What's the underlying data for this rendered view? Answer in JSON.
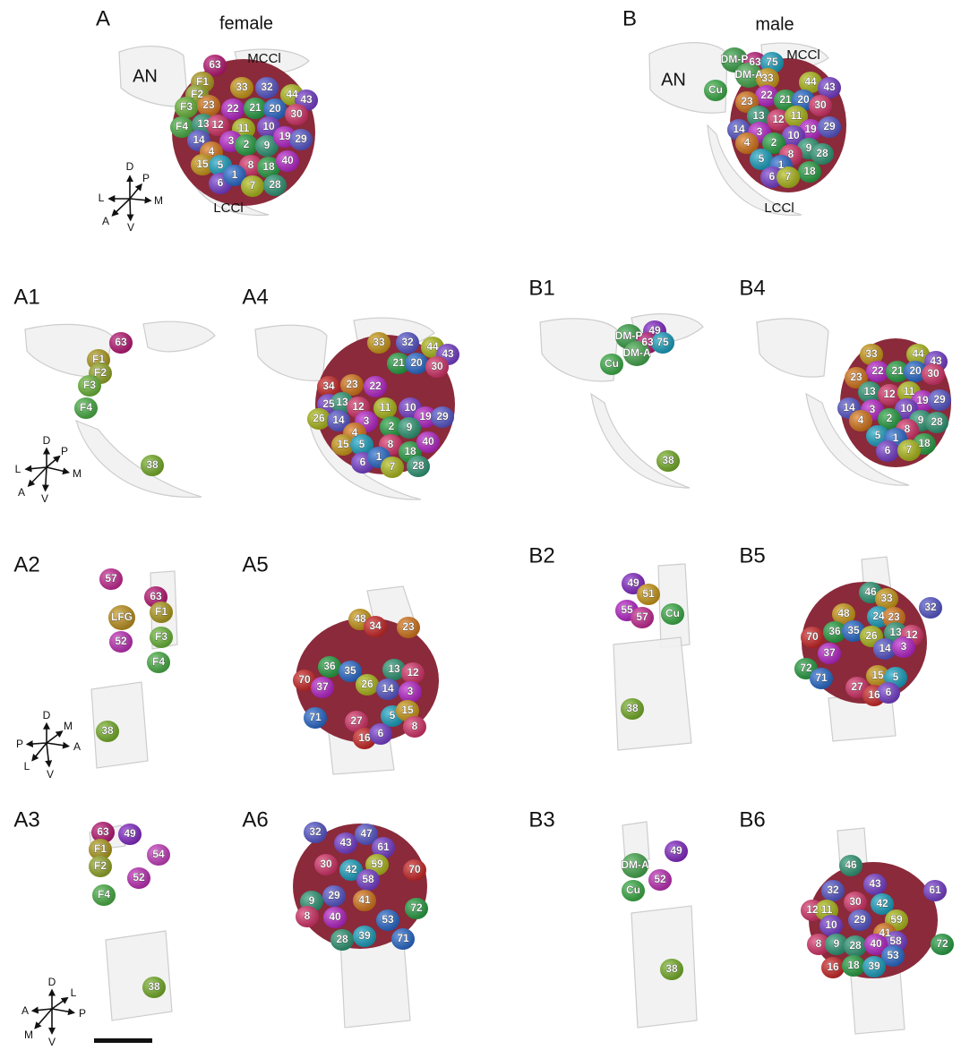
{
  "panels": [
    {
      "label": "A",
      "title": "female",
      "structures": [
        "AN",
        "MCCl",
        "LCCl"
      ],
      "glomeruli": [
        "63",
        "F1",
        "F2",
        "33",
        "32",
        "44",
        "43",
        "F3",
        "23",
        "22",
        "21",
        "20",
        "30",
        "F4",
        "13",
        "12",
        "11",
        "10",
        "14",
        "3",
        "2",
        "9",
        "19",
        "29",
        "4",
        "15",
        "5",
        "8",
        "18",
        "40",
        "6",
        "1",
        "7",
        "28"
      ]
    },
    {
      "label": "B",
      "title": "male",
      "structures": [
        "AN",
        "MCCl",
        "LCCl"
      ],
      "glomeruli": [
        "Cu",
        "DM-P",
        "63",
        "75",
        "DM-A",
        "33",
        "44",
        "43",
        "22",
        "21",
        "20",
        "30",
        "23",
        "13",
        "12",
        "11",
        "19",
        "29",
        "14",
        "3",
        "10",
        "4",
        "2",
        "9",
        "28",
        "8",
        "5",
        "1",
        "18",
        "6",
        "7"
      ]
    },
    {
      "label": "A1",
      "glomeruli": [
        "63",
        "F1",
        "F2",
        "F3",
        "F4",
        "38"
      ]
    },
    {
      "label": "A4",
      "glomeruli": [
        "33",
        "32",
        "44",
        "43",
        "34",
        "23",
        "22",
        "21",
        "20",
        "30",
        "25",
        "13",
        "12",
        "11",
        "10",
        "19",
        "29",
        "26",
        "14",
        "3",
        "2",
        "9",
        "4",
        "15",
        "5",
        "8",
        "18",
        "40",
        "6",
        "1",
        "7",
        "28"
      ]
    },
    {
      "label": "B1",
      "glomeruli": [
        "Cu",
        "DM-P",
        "49",
        "63",
        "75",
        "DM-A",
        "38"
      ]
    },
    {
      "label": "B4",
      "glomeruli": [
        "33",
        "44",
        "43",
        "23",
        "22",
        "21",
        "20",
        "30",
        "13",
        "12",
        "11",
        "19",
        "29",
        "14",
        "3",
        "10",
        "4",
        "2",
        "9",
        "28",
        "8",
        "5",
        "1",
        "18",
        "6",
        "7"
      ]
    },
    {
      "label": "A2",
      "glomeruli": [
        "57",
        "63",
        "LFG",
        "F1",
        "52",
        "F3",
        "F4",
        "38"
      ]
    },
    {
      "label": "A5",
      "glomeruli": [
        "48",
        "34",
        "23",
        "70",
        "36",
        "37",
        "35",
        "13",
        "12",
        "26",
        "14",
        "3",
        "27",
        "5",
        "15",
        "8",
        "16",
        "6",
        "71"
      ]
    },
    {
      "label": "B2",
      "glomeruli": [
        "49",
        "51",
        "55",
        "57",
        "Cu",
        "38"
      ]
    },
    {
      "label": "B5",
      "glomeruli": [
        "46",
        "33",
        "48",
        "24",
        "23",
        "32",
        "70",
        "36",
        "35",
        "26",
        "13",
        "12",
        "37",
        "14",
        "3",
        "72",
        "71",
        "15",
        "5",
        "27",
        "16",
        "6"
      ]
    },
    {
      "label": "A3",
      "glomeruli": [
        "63",
        "49",
        "F1",
        "54",
        "F2",
        "52",
        "F4",
        "38"
      ]
    },
    {
      "label": "A6",
      "glomeruli": [
        "32",
        "43",
        "47",
        "61",
        "30",
        "42",
        "59",
        "70",
        "58",
        "9",
        "29",
        "41",
        "40",
        "53",
        "72",
        "8",
        "28",
        "39",
        "71"
      ]
    },
    {
      "label": "B3",
      "glomeruli": [
        "49",
        "DM-A",
        "52",
        "Cu",
        "38"
      ]
    },
    {
      "label": "B6",
      "glomeruli": [
        "46",
        "43",
        "61",
        "32",
        "30",
        "42",
        "12",
        "11",
        "10",
        "29",
        "59",
        "41",
        "58",
        "72",
        "8",
        "9",
        "28",
        "40",
        "53",
        "16",
        "18",
        "39"
      ]
    }
  ],
  "orientation_keys": [
    {
      "letters": [
        "D",
        "P",
        "L",
        "M",
        "A",
        "V"
      ]
    },
    {
      "letters": [
        "D",
        "P",
        "L",
        "M",
        "A",
        "V"
      ]
    },
    {
      "letters": [
        "D",
        "M",
        "P",
        "A",
        "L",
        "V"
      ]
    },
    {
      "letters": [
        "D",
        "L",
        "A",
        "P",
        "M",
        "V"
      ]
    }
  ]
}
